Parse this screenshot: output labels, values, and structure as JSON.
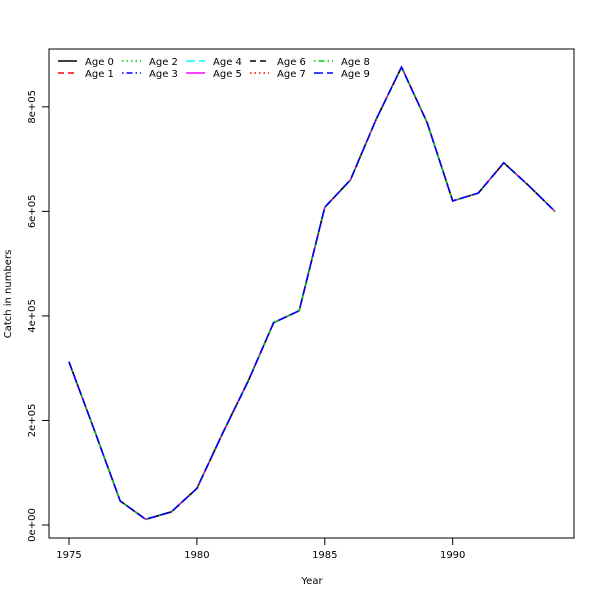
{
  "chart_data": {
    "type": "line",
    "title": "",
    "xlabel": "Year",
    "ylabel": "Catch in numbers",
    "xlim": [
      1975,
      1994
    ],
    "ylim": [
      0,
      880000
    ],
    "x_ticks": [
      1975,
      1980,
      1985,
      1990
    ],
    "x_tick_labels": [
      "1975",
      "1980",
      "1985",
      "1990"
    ],
    "y_ticks": [
      0,
      200000,
      400000,
      600000,
      800000
    ],
    "y_tick_labels": [
      "0e+00",
      "2e+05",
      "4e+05",
      "6e+05",
      "8e+05"
    ],
    "grid": false,
    "legend_position": "top-left",
    "x": [
      1975,
      1976,
      1977,
      1978,
      1979,
      1980,
      1981,
      1982,
      1983,
      1984,
      1985,
      1986,
      1987,
      1988,
      1989,
      1990,
      1991,
      1992,
      1993,
      1994
    ],
    "series": [
      {
        "name": "Age 0",
        "color": "#000000",
        "dash": "solid",
        "values": [
          312000,
          180000,
          46000,
          11000,
          25000,
          70000,
          175000,
          275000,
          387000,
          410000,
          608000,
          660000,
          775000,
          876000,
          770000,
          620000,
          635000,
          693000,
          648000,
          600000
        ]
      },
      {
        "name": "Age 1",
        "color": "#ff0000",
        "dash": "dashed",
        "values": [
          312000,
          180000,
          46000,
          11000,
          25000,
          70000,
          175000,
          275000,
          387000,
          410000,
          608000,
          660000,
          775000,
          876000,
          770000,
          620000,
          635000,
          693000,
          648000,
          600000
        ]
      },
      {
        "name": "Age 2",
        "color": "#00cd00",
        "dash": "dotted",
        "values": [
          312000,
          180000,
          46000,
          11000,
          25000,
          70000,
          175000,
          275000,
          387000,
          410000,
          608000,
          660000,
          775000,
          876000,
          770000,
          620000,
          635000,
          693000,
          648000,
          600000
        ]
      },
      {
        "name": "Age 3",
        "color": "#0000ff",
        "dash": "dotdash",
        "values": [
          312000,
          180000,
          46000,
          11000,
          25000,
          70000,
          175000,
          275000,
          387000,
          410000,
          608000,
          660000,
          775000,
          876000,
          770000,
          620000,
          635000,
          693000,
          648000,
          600000
        ]
      },
      {
        "name": "Age 4",
        "color": "#00ffff",
        "dash": "longdash",
        "values": [
          312000,
          180000,
          46000,
          11000,
          25000,
          70000,
          175000,
          275000,
          387000,
          410000,
          608000,
          660000,
          775000,
          876000,
          770000,
          620000,
          635000,
          693000,
          648000,
          600000
        ]
      },
      {
        "name": "Age 5",
        "color": "#ff00ff",
        "dash": "solid",
        "values": [
          312000,
          180000,
          46000,
          11000,
          25000,
          70000,
          175000,
          275000,
          387000,
          410000,
          608000,
          660000,
          775000,
          876000,
          770000,
          620000,
          635000,
          693000,
          648000,
          600000
        ]
      },
      {
        "name": "Age 6",
        "color": "#000000",
        "dash": "dashed",
        "values": [
          312000,
          180000,
          46000,
          11000,
          25000,
          70000,
          175000,
          275000,
          387000,
          410000,
          608000,
          660000,
          775000,
          876000,
          770000,
          620000,
          635000,
          693000,
          648000,
          600000
        ]
      },
      {
        "name": "Age 7",
        "color": "#ff0000",
        "dash": "dotted",
        "values": [
          312000,
          180000,
          46000,
          11000,
          25000,
          70000,
          175000,
          275000,
          387000,
          410000,
          608000,
          660000,
          775000,
          876000,
          770000,
          620000,
          635000,
          693000,
          648000,
          600000
        ]
      },
      {
        "name": "Age 8",
        "color": "#00cd00",
        "dash": "dotdash",
        "values": [
          312000,
          180000,
          46000,
          11000,
          25000,
          70000,
          175000,
          275000,
          387000,
          410000,
          608000,
          660000,
          775000,
          876000,
          770000,
          620000,
          635000,
          693000,
          648000,
          600000
        ]
      },
      {
        "name": "Age 9",
        "color": "#0000ff",
        "dash": "longdash",
        "values": [
          312000,
          180000,
          46000,
          11000,
          25000,
          70000,
          175000,
          275000,
          387000,
          410000,
          608000,
          660000,
          775000,
          876000,
          770000,
          620000,
          635000,
          693000,
          648000,
          600000
        ]
      }
    ]
  }
}
